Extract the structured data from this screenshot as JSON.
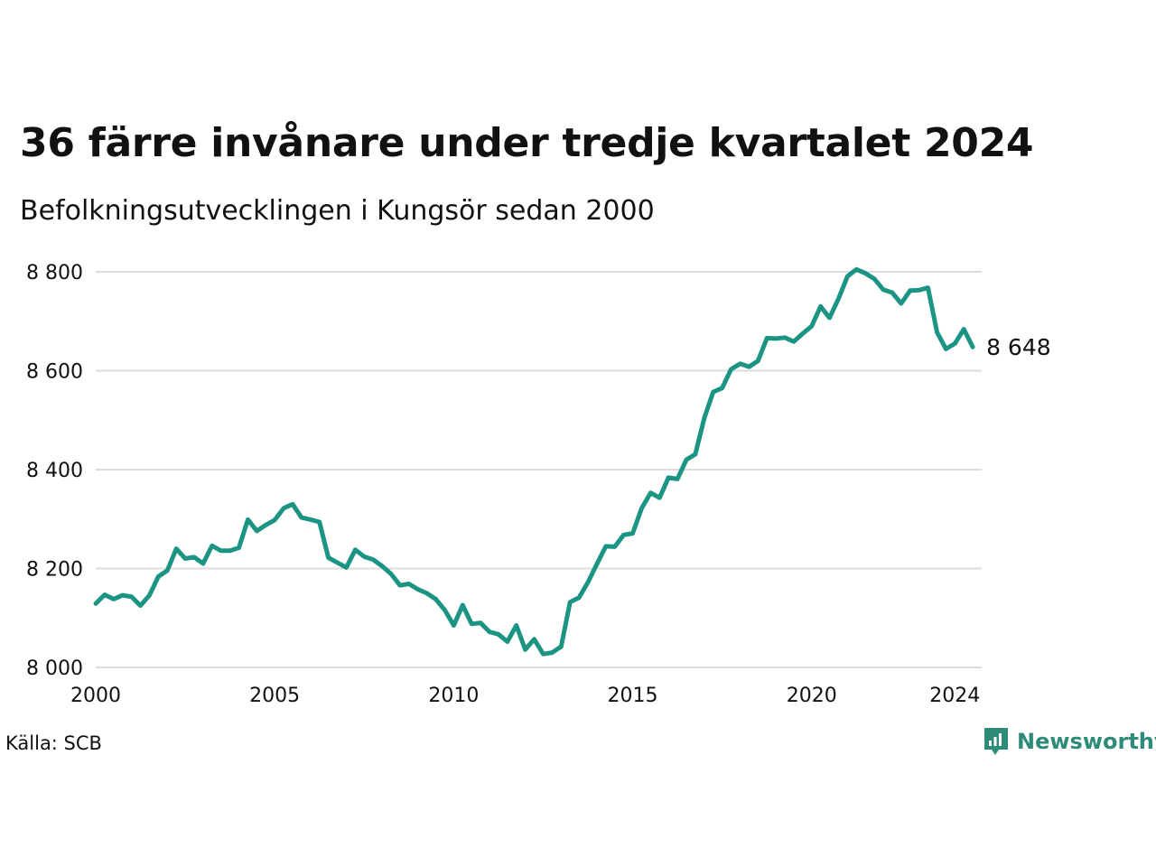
{
  "title": "36 färre invånare under tredje kvartalet 2024",
  "subtitle": "Befolkningsutvecklingen i Kungsör sedan 2000",
  "source": "Källa: SCB",
  "brand": {
    "name": "Newsworthy",
    "color": "#2e8b78"
  },
  "colors": {
    "line": "#1b9483",
    "grid": "#dcdcdc"
  },
  "chart_data": {
    "type": "line",
    "title": "36 färre invånare under tredje kvartalet 2024",
    "subtitle": "Befolkningsutvecklingen i Kungsör sedan 2000",
    "xlabel": "",
    "ylabel": "",
    "xlim": [
      2000,
      2024.75
    ],
    "ylim": [
      8000,
      8800
    ],
    "x_ticks": [
      2000,
      2005,
      2010,
      2015,
      2020,
      2024
    ],
    "x_tick_labels": [
      "2000",
      "2005",
      "2010",
      "2015",
      "2020",
      "2024"
    ],
    "y_ticks": [
      8000,
      8200,
      8400,
      8600,
      8800
    ],
    "y_tick_labels": [
      "8 000",
      "8 200",
      "8 400",
      "8 600",
      "8 800"
    ],
    "grid": "horizontal",
    "end_label": "8 648",
    "series": [
      {
        "x_start": 2000,
        "x_step": 0.25,
        "values": [
          8129,
          8147,
          8138,
          8146,
          8143,
          8125,
          8146,
          8184,
          8196,
          8240,
          8220,
          8223,
          8210,
          8246,
          8236,
          8236,
          8242,
          8299,
          8276,
          8288,
          8298,
          8322,
          8330,
          8303,
          8299,
          8294,
          8222,
          8212,
          8202,
          8238,
          8224,
          8218,
          8205,
          8189,
          8166,
          8169,
          8158,
          8150,
          8138,
          8116,
          8085,
          8126,
          8088,
          8090,
          8072,
          8067,
          8052,
          8085,
          8036,
          8057,
          8027,
          8030,
          8042,
          8132,
          8141,
          8172,
          8209,
          8245,
          8244,
          8268,
          8271,
          8322,
          8353,
          8343,
          8384,
          8381,
          8420,
          8431,
          8504,
          8557,
          8565,
          8603,
          8614,
          8608,
          8620,
          8666,
          8665,
          8667,
          8659,
          8675,
          8690,
          8730,
          8707,
          8746,
          8791,
          8805,
          8797,
          8786,
          8764,
          8758,
          8736,
          8762,
          8763,
          8768,
          8678,
          8644,
          8655,
          8684,
          8648
        ]
      }
    ]
  }
}
